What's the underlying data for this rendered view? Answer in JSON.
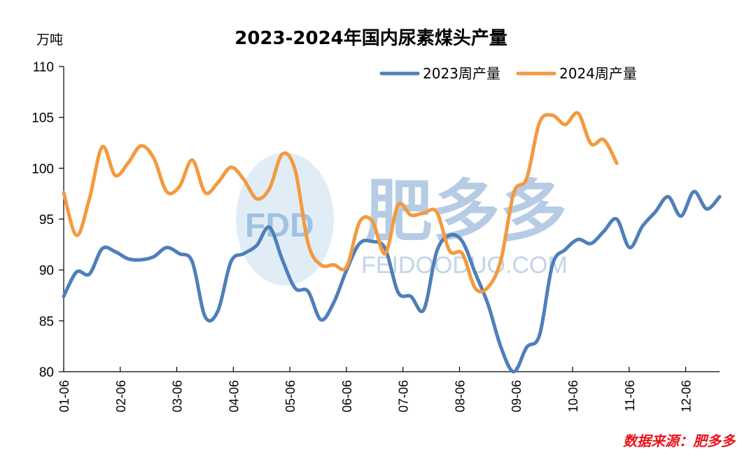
{
  "chart_data": {
    "type": "line",
    "title": "2023-2024年国内尿素煤头产量",
    "ylabel": "万吨",
    "ylim": [
      80,
      110
    ],
    "yticks": [
      80,
      85,
      90,
      95,
      100,
      105,
      110
    ],
    "x_ticks": [
      "01-06",
      "02-06",
      "03-06",
      "04-06",
      "05-06",
      "06-06",
      "07-06",
      "08-06",
      "09-06",
      "10-06",
      "11-06",
      "12-06"
    ],
    "legend_position": "top-right",
    "grid": false,
    "series": [
      {
        "name": "2023周产量",
        "color": "#4e7fba",
        "values": [
          87.4,
          89.8,
          89.6,
          92.1,
          91.8,
          91.1,
          91.0,
          91.3,
          92.2,
          91.6,
          90.8,
          85.4,
          86.0,
          90.8,
          91.6,
          92.4,
          94.2,
          91.0,
          88.2,
          87.9,
          85.1,
          86.8,
          90.0,
          92.6,
          92.8,
          92.1,
          87.8,
          87.4,
          86.1,
          91.8,
          93.4,
          92.8,
          89.7,
          86.6,
          82.4,
          80.0,
          82.4,
          83.6,
          90.5,
          92.0,
          93.0,
          92.6,
          93.8,
          95.0,
          92.2,
          94.3,
          95.7,
          97.2,
          95.3,
          97.7,
          96.0,
          97.2
        ]
      },
      {
        "name": "2024周产量",
        "color": "#f39a3f",
        "values": [
          97.6,
          93.4,
          97.0,
          102.1,
          99.3,
          100.5,
          102.2,
          101.0,
          97.7,
          98.2,
          100.8,
          97.6,
          98.6,
          100.1,
          98.9,
          97.0,
          98.0,
          101.4,
          99.8,
          92.6,
          90.5,
          90.5,
          90.3,
          94.7,
          94.8,
          91.6,
          96.4,
          95.4,
          95.6,
          95.7,
          91.9,
          91.6,
          88.2,
          88.3,
          91.0,
          97.6,
          99.0,
          104.5,
          105.2,
          104.3,
          105.4,
          102.4,
          102.8,
          100.5
        ]
      }
    ]
  },
  "unit_label": "万吨",
  "source_note": "数据来源：肥多多",
  "watermark": {
    "logo_text": "FDD",
    "brand_text": "肥多多",
    "url_text": "FEIDOODUO.COM"
  }
}
